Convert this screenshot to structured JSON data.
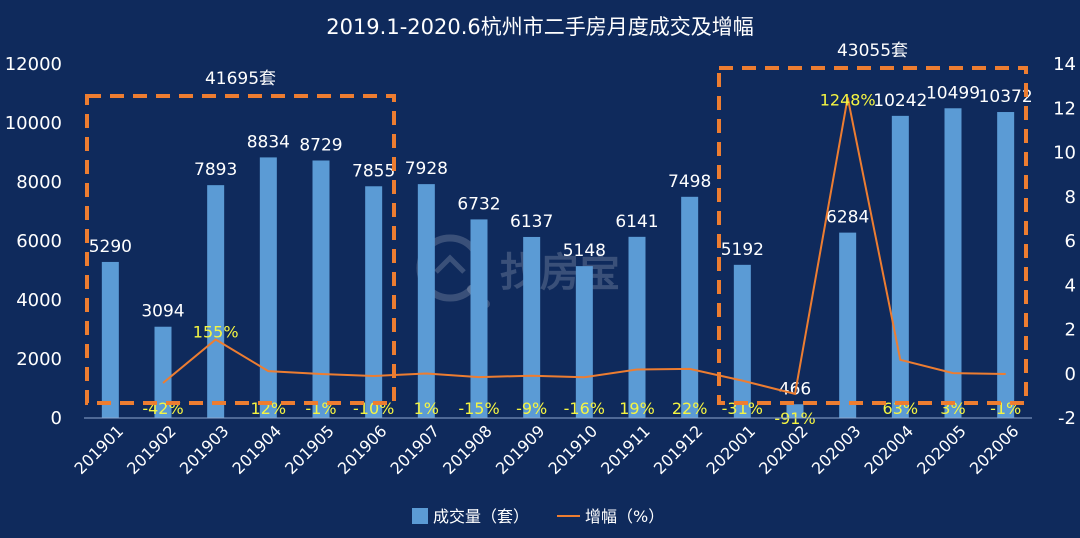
{
  "chart_data": {
    "type": "bar",
    "title": "2019.1-2020.6杭州市二手房月度成交及增幅",
    "categories": [
      "201901",
      "201902",
      "201903",
      "201904",
      "201905",
      "201906",
      "201907",
      "201908",
      "201909",
      "201910",
      "201911",
      "201912",
      "202001",
      "202002",
      "202003",
      "202004",
      "202005",
      "202006"
    ],
    "series": [
      {
        "name": "成交量（套）",
        "type": "bar",
        "axis": "left",
        "color": "#5b9bd5",
        "values": [
          5290,
          3094,
          7893,
          8834,
          8729,
          7855,
          7928,
          6732,
          6137,
          5148,
          6141,
          7498,
          5192,
          466,
          6284,
          10242,
          10499,
          10372
        ]
      },
      {
        "name": "增幅（%）",
        "type": "line",
        "axis": "right",
        "color": "#ed7d31",
        "values": [
          null,
          -0.42,
          1.55,
          0.12,
          -0.01,
          -0.1,
          0.01,
          -0.15,
          -0.09,
          -0.16,
          0.19,
          0.22,
          -0.31,
          -0.91,
          12.48,
          0.63,
          0.03,
          -0.01
        ],
        "labels": [
          "",
          "-42%",
          "155%",
          "12%",
          "-1%",
          "-10%",
          "1%",
          "-15%",
          "-9%",
          "-16%",
          "19%",
          "22%",
          "-31%",
          "-91%",
          "1248%",
          "63%",
          "3%",
          "-1%"
        ]
      }
    ],
    "y_left": {
      "min": 0,
      "max": 12000,
      "ticks": [
        0,
        2000,
        4000,
        6000,
        8000,
        10000,
        12000
      ]
    },
    "y_right": {
      "min": -2,
      "max": 14,
      "ticks": [
        -2,
        0,
        2,
        4,
        6,
        8,
        10,
        12,
        14
      ]
    },
    "annotations": [
      {
        "text": "41695套",
        "from_index": 0,
        "to_index": 5,
        "color": "#ed7d31"
      },
      {
        "text": "43055套",
        "from_index": 12,
        "to_index": 17,
        "color": "#ed7d31"
      }
    ],
    "legend_position": "bottom",
    "grid": false,
    "watermark": "找房宝"
  }
}
